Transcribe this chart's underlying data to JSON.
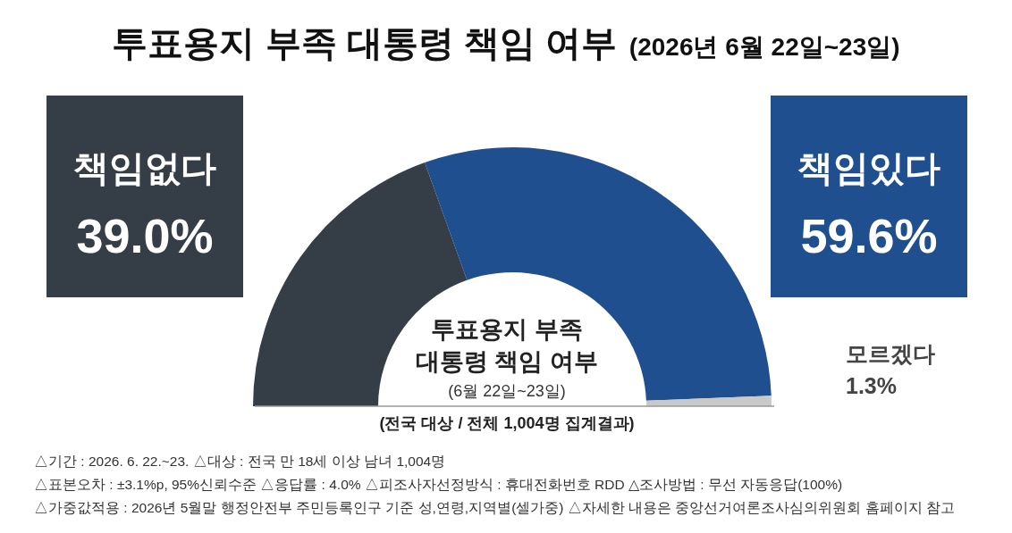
{
  "chart_data": {
    "type": "donut",
    "title": "투표용지 부족 대통령 책임 여부",
    "subtitle": "(2026년 6월 22일~23일)",
    "categories": [
      "책임없다",
      "책임있다",
      "모르겠다"
    ],
    "values": [
      39.0,
      59.6,
      1.3
    ],
    "value_labels": [
      "39.0%",
      "59.6%",
      "1.3%"
    ],
    "colors": [
      "#353d47",
      "#1f4f8f",
      "#c9c9c9"
    ],
    "annotations": [
      "투표용지 부족",
      "대통령 책임 여부",
      "(6월 22일~23일)",
      "(전국 대상 / 전체 1,004명 집계결과)",
      "△기간 : 2026. 6. 22.~23.   △대상 : 전국 만 18세 이상 남녀 1,004명",
      "△표본오차 : ±3.1%p, 95%신뢰수준   △응답률 : 4.0%   △피조사자선정방식 : 휴대전화번호 RDD   △조사방법 : 무선 자동응답(100%)",
      "△가중값적용 : 2026년 5월말 행정안전부 주민등록인구 기준 성,연령,지역별(셀가중)   △자세한 내용은 중앙선거여론조사심의위원회 홈페이지 참고"
    ]
  }
}
